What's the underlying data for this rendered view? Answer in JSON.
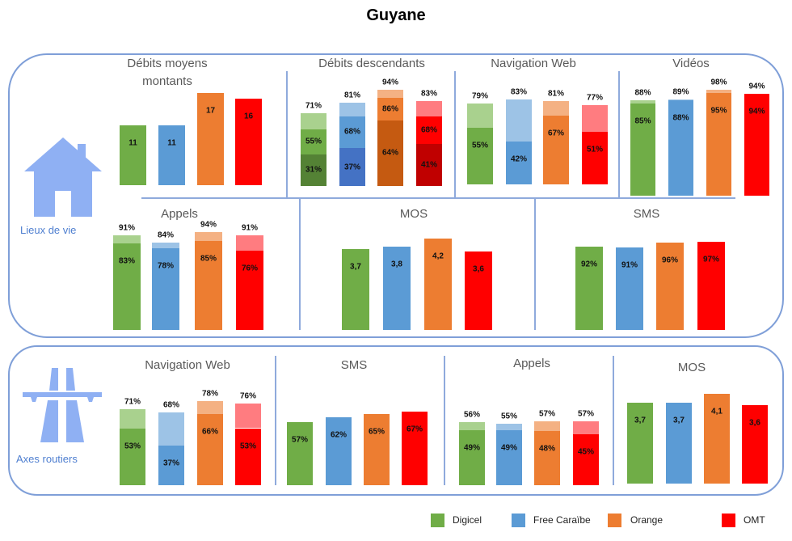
{
  "title": "Guyane",
  "groups": [
    "Lieux de vie",
    "Axes routiers"
  ],
  "legend": [
    {
      "name": "Digicel",
      "color": "#70ad47"
    },
    {
      "name": "Free Caraïbe",
      "color": "#5b9bd5"
    },
    {
      "name": "Orange",
      "color": "#ed7d31"
    },
    {
      "name": "OMT",
      "color": "#ff0000"
    }
  ],
  "palettes": {
    "Digicel": [
      "#548235",
      "#70ad47",
      "#a9d18e"
    ],
    "Free Caraïbe": [
      "#4472c4",
      "#5b9bd5",
      "#9dc3e6"
    ],
    "Orange": [
      "#c55a11",
      "#ed7d31",
      "#f4b183"
    ],
    "OMT": [
      "#c00000",
      "#ff0000",
      "#ff7c80"
    ]
  },
  "chart_data": [
    {
      "type": "bar",
      "group": "Lieux de vie",
      "title": "Débits moyens montants",
      "unit": "",
      "series": [
        {
          "name": "Digicel",
          "values": [
            11
          ]
        },
        {
          "name": "Free Caraïbe",
          "values": [
            11
          ]
        },
        {
          "name": "Orange",
          "values": [
            17
          ]
        },
        {
          "name": "OMT",
          "values": [
            16
          ]
        }
      ]
    },
    {
      "type": "bar",
      "stacked": true,
      "group": "Lieux de vie",
      "title": "Débits descendants",
      "unit": "%",
      "series": [
        {
          "name": "Digicel",
          "values": [
            31,
            55,
            71
          ]
        },
        {
          "name": "Free Caraïbe",
          "values": [
            37,
            68,
            81
          ]
        },
        {
          "name": "Orange",
          "values": [
            64,
            86,
            94
          ]
        },
        {
          "name": "OMT",
          "values": [
            41,
            68,
            83
          ]
        }
      ]
    },
    {
      "type": "bar",
      "stacked": true,
      "group": "Lieux de vie",
      "title": "Navigation Web",
      "unit": "%",
      "series": [
        {
          "name": "Digicel",
          "values": [
            55,
            79
          ]
        },
        {
          "name": "Free Caraïbe",
          "values": [
            42,
            83
          ]
        },
        {
          "name": "Orange",
          "values": [
            67,
            81
          ]
        },
        {
          "name": "OMT",
          "values": [
            51,
            77
          ]
        }
      ]
    },
    {
      "type": "bar",
      "stacked": true,
      "group": "Lieux de vie",
      "title": "Vidéos",
      "unit": "%",
      "series": [
        {
          "name": "Digicel",
          "values": [
            85,
            88
          ]
        },
        {
          "name": "Free Caraïbe",
          "values": [
            88,
            89
          ]
        },
        {
          "name": "Orange",
          "values": [
            95,
            98
          ]
        },
        {
          "name": "OMT",
          "values": [
            94,
            94
          ]
        }
      ]
    },
    {
      "type": "bar",
      "stacked": true,
      "group": "Lieux de vie",
      "title": "Appels",
      "unit": "%",
      "series": [
        {
          "name": "Digicel",
          "values": [
            83,
            91
          ]
        },
        {
          "name": "Free Caraïbe",
          "values": [
            78,
            84
          ]
        },
        {
          "name": "Orange",
          "values": [
            85,
            94
          ]
        },
        {
          "name": "OMT",
          "values": [
            76,
            91
          ]
        }
      ]
    },
    {
      "type": "bar",
      "group": "Lieux de vie",
      "title": "MOS",
      "unit": "",
      "series": [
        {
          "name": "Digicel",
          "values": [
            3.7
          ]
        },
        {
          "name": "Free Caraïbe",
          "values": [
            3.8
          ]
        },
        {
          "name": "Orange",
          "values": [
            4.2
          ]
        },
        {
          "name": "OMT",
          "values": [
            3.6
          ]
        }
      ]
    },
    {
      "type": "bar",
      "group": "Lieux de vie",
      "title": "SMS",
      "unit": "%",
      "series": [
        {
          "name": "Digicel",
          "values": [
            92
          ]
        },
        {
          "name": "Free Caraïbe",
          "values": [
            91
          ]
        },
        {
          "name": "Orange",
          "values": [
            96
          ]
        },
        {
          "name": "OMT",
          "values": [
            97
          ]
        }
      ]
    },
    {
      "type": "bar",
      "stacked": true,
      "group": "Axes routiers",
      "title": "Navigation Web",
      "unit": "%",
      "series": [
        {
          "name": "Digicel",
          "values": [
            53,
            71
          ]
        },
        {
          "name": "Free Caraïbe",
          "values": [
            37,
            68
          ]
        },
        {
          "name": "Orange",
          "values": [
            66,
            78
          ]
        },
        {
          "name": "OMT",
          "values": [
            53,
            76
          ]
        }
      ]
    },
    {
      "type": "bar",
      "group": "Axes routiers",
      "title": "SMS",
      "unit": "%",
      "series": [
        {
          "name": "Digicel",
          "values": [
            57
          ]
        },
        {
          "name": "Free Caraïbe",
          "values": [
            62
          ]
        },
        {
          "name": "Orange",
          "values": [
            65
          ]
        },
        {
          "name": "OMT",
          "values": [
            67
          ]
        }
      ]
    },
    {
      "type": "bar",
      "stacked": true,
      "group": "Axes routiers",
      "title": "Appels",
      "unit": "%",
      "series": [
        {
          "name": "Digicel",
          "values": [
            49,
            56
          ]
        },
        {
          "name": "Free Caraïbe",
          "values": [
            49,
            55
          ]
        },
        {
          "name": "Orange",
          "values": [
            48,
            57
          ]
        },
        {
          "name": "OMT",
          "values": [
            45,
            57
          ]
        }
      ]
    },
    {
      "type": "bar",
      "group": "Axes routiers",
      "title": "MOS",
      "unit": "",
      "series": [
        {
          "name": "Digicel",
          "values": [
            3.7
          ]
        },
        {
          "name": "Free Caraïbe",
          "values": [
            3.7
          ]
        },
        {
          "name": "Orange",
          "values": [
            4.1
          ]
        },
        {
          "name": "OMT",
          "values": [
            3.6
          ]
        }
      ]
    }
  ]
}
